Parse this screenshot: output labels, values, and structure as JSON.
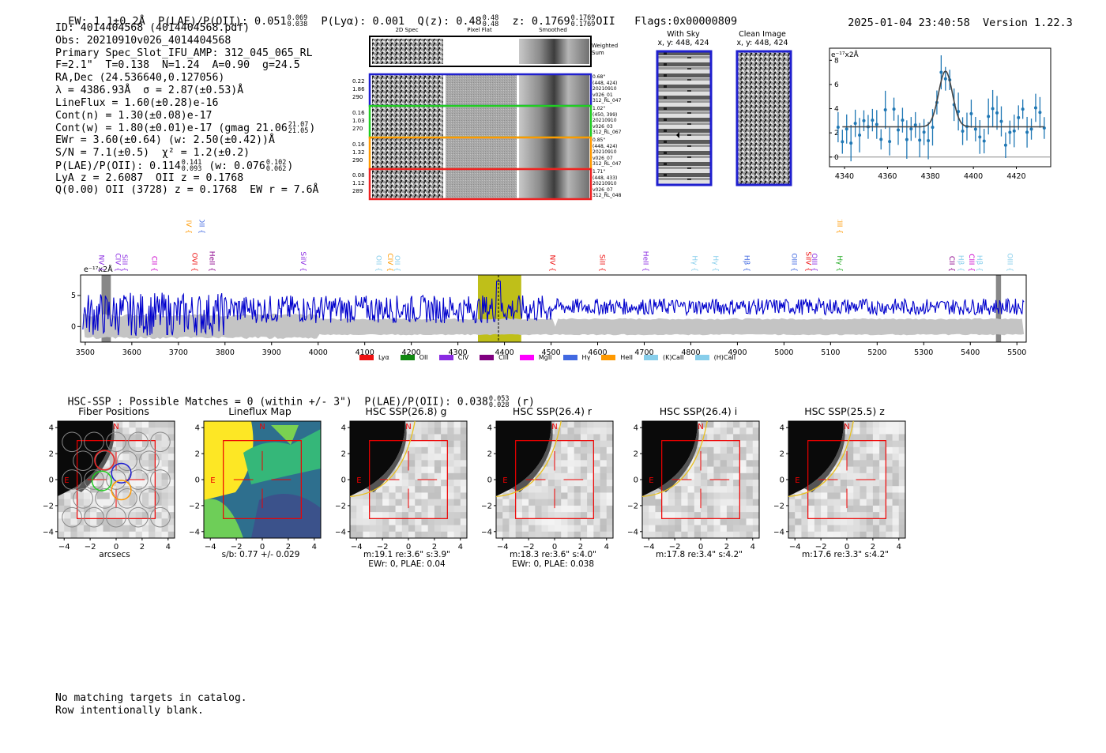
{
  "header": {
    "ew_label": "EW: 1.1±0.2Å",
    "plae_label": "P(LAE)/P(OII): 0.051",
    "plae_hi": "0.069",
    "plae_lo": "0.038",
    "plya_label": "P(Lyα): 0.001",
    "q_label": "Q(z): 0.48",
    "q_hi": "0.48",
    "q_lo": "0.48",
    "z_label": "z: 0.1769",
    "z_hi": "0.1769",
    "z_lo": "0.1769",
    "z_line": "OII",
    "flags": "Flags:0x00000809",
    "timestamp": "2025-01-04 23:40:58",
    "version": "Version 1.22.3"
  },
  "info": {
    "id": "ID: 4014404568 (4014404568.pdf)",
    "obs": "Obs: 20210910v026_4014404568",
    "primary": "Primary Spec_Slot_IFU_AMP: 312_045_065_RL",
    "params": "F=2.1\"  T=0.138  N=1.24  A=0.90  g=24.5",
    "radec": "RA,Dec (24.536640,0.127056)",
    "lambda": "λ = 4386.93Å  σ = 2.87(±0.53)Å",
    "lineflux": "LineFlux = 1.60(±0.28)e-16",
    "contn": "Cont(n) = 1.30(±0.08)e-17",
    "contw": "Cont(w) = 1.80(±0.01)e-17 (gmag 21.06",
    "contw_hi": "21.07",
    "contw_lo": "21.05",
    "contw_end": ")",
    "ewr": "EWr = 3.60(±0.64) (w: 2.50(±0.42))Å",
    "sn": "S/N = 7.1(±0.5)  χ² = 1.2(±0.2)",
    "plae": "P(LAE)/P(OII): 0.114",
    "plae_hi": "0.141",
    "plae_lo": "0.093",
    "plae_w": "(w: 0.076",
    "plae_w_hi": "0.102",
    "plae_w_lo": "0.062",
    "plae_end": ")",
    "lya": "LyA z = 2.6087  OII z = 0.1768",
    "q": "Q(0.00) OII (3728) z = 0.1768  EW r = 7.6Å"
  },
  "spec2d": {
    "col_titles": [
      "2D Spec",
      "Pixel Flat",
      "Smoothed"
    ],
    "weighted_label": "Weighted Sum",
    "rows": [
      {
        "vals": [
          "0.22",
          "1.86",
          "290"
        ],
        "color": "#1f1fcf",
        "notes": [
          "0.68\"",
          "(448, 424)",
          "20210910",
          "v026_01",
          "312_RL_047"
        ]
      },
      {
        "vals": [
          "0.16",
          "1.03",
          "270"
        ],
        "color": "#22cc22",
        "notes": [
          "1.02\"",
          "(450, 399)",
          "20210910",
          "v026_03",
          "312_RL_067"
        ]
      },
      {
        "vals": [
          "0.16",
          "1.32",
          "290"
        ],
        "color": "#ff9900",
        "notes": [
          "0.85\"",
          "(448, 424)",
          "20210910",
          "v026_07",
          "312_RL_047"
        ]
      },
      {
        "vals": [
          "0.08",
          "1.12",
          "289"
        ],
        "color": "#ee2222",
        "notes": [
          "1.71\"",
          "(448, 433)",
          "20210910",
          "v026_07",
          "312_RL_048"
        ]
      }
    ]
  },
  "images": {
    "with_sky_title": "With Sky",
    "with_sky_sub": "x, y: 448, 424",
    "clean_title": "Clean Image",
    "clean_sub": "x, y: 448, 424"
  },
  "zoom_plot": {
    "ylabel": "e⁻¹⁷x2Å",
    "x_ticks": [
      "4340",
      "4360",
      "4380",
      "4400",
      "4420"
    ],
    "y_ticks": [
      "0",
      "2",
      "4",
      "6",
      "8"
    ]
  },
  "full_spec": {
    "ylabel": "e⁻¹⁷x2Å",
    "x_ticks": [
      "3500",
      "3600",
      "3700",
      "3800",
      "3900",
      "4000",
      "4100",
      "4200",
      "4300",
      "4400",
      "4500",
      "4600",
      "4700",
      "4800",
      "4900",
      "5000",
      "5100",
      "5200",
      "5300",
      "5400",
      "5500"
    ],
    "y_ticks": [
      "5",
      "0"
    ],
    "top_lines": [
      {
        "name": "SiIV",
        "color": "#ff9900",
        "x": 3712
      },
      {
        "name": "OII",
        "color": "#4169e1",
        "x": 3740
      },
      {
        "name": "CIII",
        "color": "#ff9900",
        "x": 5110
      }
    ],
    "lines": [
      {
        "name": "NV",
        "color": "#8a2be2",
        "x": 3525
      },
      {
        "name": "CIV",
        "color": "#8a2be2",
        "x": 3560
      },
      {
        "name": "SiII",
        "color": "#8a2be2",
        "x": 3575
      },
      {
        "name": "CII",
        "color": "#cc00cc",
        "x": 3638
      },
      {
        "name": "OVI",
        "color": "#ee1111",
        "x": 3725
      },
      {
        "name": "HeII",
        "color": "#8b008b",
        "x": 3762
      },
      {
        "name": "SiIV",
        "color": "#8a2be2",
        "x": 3958
      },
      {
        "name": "OII",
        "color": "#87ceeb",
        "x": 4120
      },
      {
        "name": "CIV",
        "color": "#ff9900",
        "x": 4145
      },
      {
        "name": "OII",
        "color": "#87ceeb",
        "x": 4160
      },
      {
        "name": "NV",
        "color": "#ee1111",
        "x": 4493
      },
      {
        "name": "SiII",
        "color": "#ee1111",
        "x": 4600
      },
      {
        "name": "HeII",
        "color": "#8a2be2",
        "x": 4693
      },
      {
        "name": "Hγ",
        "color": "#87ceeb",
        "x": 4798
      },
      {
        "name": "Hγ",
        "color": "#87ceeb",
        "x": 4843
      },
      {
        "name": "Hβ",
        "color": "#4169e1",
        "x": 4910
      },
      {
        "name": "OIII",
        "color": "#4169e1",
        "x": 5012
      },
      {
        "name": "SiIV",
        "color": "#ee1111",
        "x": 5043
      },
      {
        "name": "OIII",
        "color": "#8a2be2",
        "x": 5055
      },
      {
        "name": "Hγ",
        "color": "#22aa22",
        "x": 5110
      },
      {
        "name": "CII",
        "color": "#8b008b",
        "x": 5350
      },
      {
        "name": "Hβ",
        "color": "#87ceeb",
        "x": 5370
      },
      {
        "name": "CIII",
        "color": "#cc00cc",
        "x": 5393
      },
      {
        "name": "Hβ",
        "color": "#87ceeb",
        "x": 5410
      },
      {
        "name": "OIII",
        "color": "#87ceeb",
        "x": 5475
      }
    ],
    "legend": [
      {
        "name": "Lyα",
        "color": "#ee1111"
      },
      {
        "name": "OII",
        "color": "#118811"
      },
      {
        "name": "CIV",
        "color": "#8a2be2"
      },
      {
        "name": "CIII",
        "color": "#800080"
      },
      {
        "name": "MgII",
        "color": "#ff00ff"
      },
      {
        "name": "Hγ",
        "color": "#4169e1"
      },
      {
        "name": "HeII",
        "color": "#ff9900"
      },
      {
        "name": "(K)CaII",
        "color": "#87ceeb"
      },
      {
        "name": "(H)CaII",
        "color": "#87ceeb"
      }
    ]
  },
  "hsc": {
    "summary": "HSC-SSP : Possible Matches = 0 (within +/- 3\")  P(LAE)/P(OII): 0.038",
    "summary_hi": "0.053",
    "summary_lo": "0.028",
    "summary_end": "(r)",
    "panels": [
      {
        "title": "Fiber Positions",
        "cap1": "arcsecs",
        "cap2": ""
      },
      {
        "title": "Lineflux Map",
        "cap1": "s/b: 0.77 +/- 0.029",
        "cap2": ""
      },
      {
        "title": "HSC SSP(26.8) g",
        "cap1": "m:19.1  re:3.6\"  s:3.9\"",
        "cap2": "EWr: 0, PLAE: 0.04"
      },
      {
        "title": "HSC SSP(26.4) r",
        "cap1": "m:18.3  re:3.6\"  s:4.0\"",
        "cap2": "EWr: 0, PLAE: 0.038"
      },
      {
        "title": "HSC SSP(26.4) i",
        "cap1": "m:17.8  re:3.4\"  s:4.2\"",
        "cap2": ""
      },
      {
        "title": "HSC SSP(25.5) z",
        "cap1": "m:17.6  re:3.3\"  s:4.2\"",
        "cap2": ""
      }
    ],
    "axis_x": [
      "−4",
      "−2",
      "0",
      "2",
      "4"
    ],
    "axis_y": [
      "4",
      "2",
      "0",
      "−2",
      "−4"
    ],
    "n_label": "N",
    "e_label": "E"
  },
  "footer": {
    "line1": "No matching targets in catalog.",
    "line2": "Row intentionally blank."
  }
}
